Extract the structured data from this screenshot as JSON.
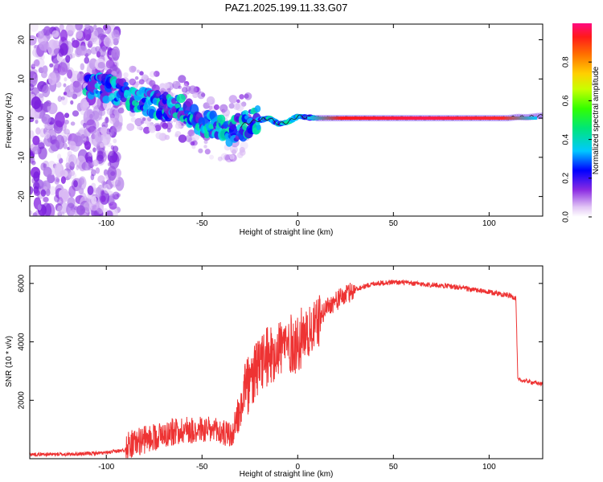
{
  "figure_title": "PAZ1.2025.199.11.33.G07",
  "chart_data": [
    {
      "type": "heatmap",
      "title": "PAZ1.2025.199.11.33.G07",
      "xlabel": "Height of straight line (km)",
      "ylabel": "Frequency (Hz)",
      "xlim": [
        -140,
        128
      ],
      "ylim": [
        -25,
        24
      ],
      "xticks": [
        -100,
        -50,
        0,
        50,
        100
      ],
      "yticks": [
        -20,
        -10,
        0,
        10,
        20
      ],
      "grid": false,
      "ridge": {
        "x": [
          -110,
          -100,
          -90,
          -80,
          -70,
          -60,
          -50,
          -40,
          -35,
          -30,
          -25,
          -20,
          -15,
          -10,
          -5,
          0,
          5,
          10,
          20,
          40,
          60,
          80,
          100,
          110,
          115,
          120,
          125,
          128
        ],
        "y": [
          8,
          7.5,
          6,
          4.5,
          3,
          2,
          -1,
          -3,
          -3.5,
          -2,
          -1,
          -0.5,
          0,
          -1.5,
          -1,
          0.5,
          0.2,
          0,
          0,
          0,
          0,
          0,
          0,
          0,
          0.3,
          0.2,
          0.5,
          0.6
        ]
      },
      "colorbar": {
        "label": "Normalized spectral amplitude",
        "range": [
          0,
          1
        ],
        "ticks": [
          "0.0",
          "0.2",
          "0.4",
          "0.6",
          "0.8"
        ],
        "colormap": "rainbow"
      }
    },
    {
      "type": "line",
      "xlabel": "Height of straight line (km)",
      "ylabel": "SNR (10 * v/v)",
      "xlim": [
        -140,
        128
      ],
      "ylim": [
        0,
        6600
      ],
      "xticks": [
        -100,
        -50,
        0,
        50,
        100
      ],
      "yticks": [
        2000,
        4000,
        6000
      ],
      "grid": false,
      "color": "#ee3333",
      "series": [
        {
          "name": "",
          "x": [
            -140,
            -120,
            -100,
            -90,
            -80,
            -70,
            -60,
            -50,
            -40,
            -33,
            -30,
            -28,
            -25,
            -20,
            -15,
            -10,
            -5,
            0,
            5,
            10,
            15,
            20,
            25,
            30,
            35,
            40,
            50,
            60,
            70,
            80,
            90,
            100,
            110,
            114,
            115,
            120,
            128
          ],
          "y": [
            150,
            150,
            200,
            300,
            500,
            700,
            850,
            850,
            750,
            650,
            1500,
            2100,
            2200,
            2900,
            3200,
            3500,
            3600,
            3600,
            4200,
            4600,
            5200,
            5400,
            5600,
            5800,
            5900,
            6000,
            6050,
            6000,
            5950,
            5900,
            5800,
            5700,
            5600,
            5500,
            2700,
            2650,
            2550
          ]
        }
      ]
    }
  ]
}
